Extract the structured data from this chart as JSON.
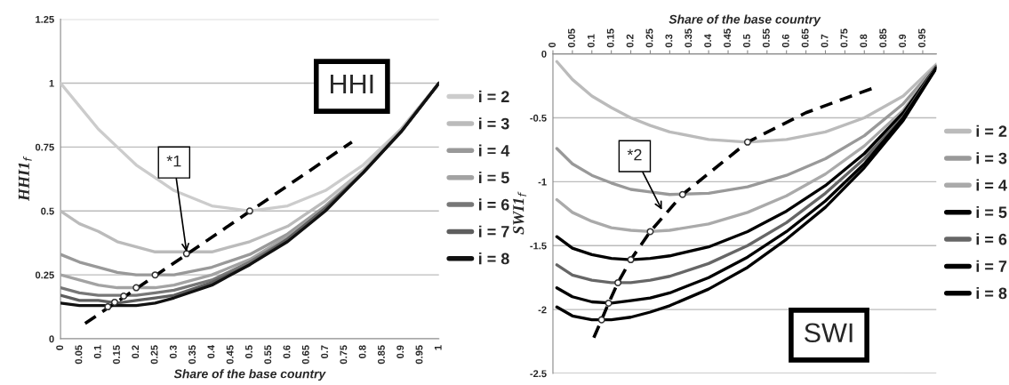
{
  "chart_data": [
    {
      "type": "line",
      "xlabel": "Share of the base country",
      "ylabel": "HHI1$_{f}$",
      "x": [
        0,
        0.05,
        0.1,
        0.15,
        0.2,
        0.25,
        0.3,
        0.4,
        0.5,
        0.6,
        0.7,
        0.8,
        0.9,
        1
      ],
      "xlim": [
        0,
        1
      ],
      "xticks": [
        0,
        0.05,
        0.1,
        0.15,
        0.2,
        0.25,
        0.3,
        0.35,
        0.4,
        0.45,
        0.5,
        0.55,
        0.6,
        0.65,
        0.7,
        0.75,
        0.8,
        0.85,
        0.9,
        0.95,
        1
      ],
      "ylim": [
        0,
        1.25
      ],
      "yticks": [
        0,
        0.25,
        0.5,
        0.75,
        1,
        1.25
      ],
      "grid": "y",
      "legend": "right",
      "annotations": [
        "HHI",
        {
          "text": "*1",
          "x": 0.333,
          "y": 0.34
        }
      ],
      "series": [
        {
          "name": "i = 2",
          "color": "#cccccc",
          "values": [
            1,
            0.91,
            0.82,
            0.75,
            0.68,
            0.63,
            0.58,
            0.52,
            0.5,
            0.52,
            0.58,
            0.68,
            0.82,
            1
          ]
        },
        {
          "name": "i = 3",
          "color": "#bbbbbb",
          "values": [
            0.5,
            0.45,
            0.42,
            0.38,
            0.36,
            0.34,
            0.34,
            0.34,
            0.38,
            0.44,
            0.54,
            0.66,
            0.82,
            1
          ]
        },
        {
          "name": "i = 4",
          "color": "#999999",
          "values": [
            0.33,
            0.3,
            0.28,
            0.26,
            0.25,
            0.25,
            0.25,
            0.28,
            0.33,
            0.41,
            0.52,
            0.65,
            0.81,
            1
          ]
        },
        {
          "name": "i = 5",
          "color": "#a3a3a3",
          "values": [
            0.25,
            0.23,
            0.21,
            0.2,
            0.2,
            0.2,
            0.21,
            0.25,
            0.31,
            0.4,
            0.51,
            0.65,
            0.81,
            1
          ]
        },
        {
          "name": "i = 6",
          "color": "#777777",
          "values": [
            0.2,
            0.18,
            0.17,
            0.17,
            0.17,
            0.18,
            0.19,
            0.23,
            0.3,
            0.39,
            0.51,
            0.65,
            0.81,
            1
          ]
        },
        {
          "name": "i = 7",
          "color": "#5e5e5e",
          "values": [
            0.17,
            0.15,
            0.15,
            0.14,
            0.15,
            0.16,
            0.17,
            0.22,
            0.29,
            0.39,
            0.51,
            0.65,
            0.81,
            1
          ]
        },
        {
          "name": "i = 8",
          "color": "#111111",
          "values": [
            0.14,
            0.13,
            0.13,
            0.13,
            0.13,
            0.14,
            0.16,
            0.21,
            0.29,
            0.38,
            0.5,
            0.65,
            0.81,
            1
          ]
        },
        {
          "type": "line",
          "line_style": "dashed",
          "color": "#000000",
          "x": [
            0.065,
            0.77
          ],
          "values": [
            0.06,
            0.77
          ]
        },
        {
          "type": "scatter",
          "marker": "circle",
          "color": "#333333",
          "x": [
            0.125,
            0.143,
            0.167,
            0.2,
            0.25,
            0.333,
            0.5
          ],
          "values": [
            0.125,
            0.143,
            0.167,
            0.2,
            0.25,
            0.333,
            0.5
          ]
        }
      ]
    },
    {
      "type": "line",
      "xlabel": "Share of the base country",
      "ylabel": "SWI1$_{f}$",
      "x": [
        0.01,
        0.05,
        0.1,
        0.15,
        0.2,
        0.25,
        0.3,
        0.4,
        0.5,
        0.6,
        0.7,
        0.8,
        0.9,
        0.985
      ],
      "xlim": [
        0,
        0.985
      ],
      "xticks": [
        0,
        0.05,
        0.1,
        0.15,
        0.2,
        0.25,
        0.3,
        0.35,
        0.4,
        0.45,
        0.5,
        0.55,
        0.6,
        0.65,
        0.7,
        0.75,
        0.8,
        0.85,
        0.9,
        0.95
      ],
      "ylim": [
        -2.5,
        0
      ],
      "yticks": [
        -2.5,
        -2,
        -1.5,
        -1,
        -0.5,
        0
      ],
      "grid": "y",
      "legend": "right",
      "annotations": [
        "SWI",
        {
          "text": "*2",
          "x": 0.28,
          "y": -1.22
        }
      ],
      "series": [
        {
          "name": "i = 2",
          "color": "#bbbbbb",
          "values": [
            -0.06,
            -0.2,
            -0.33,
            -0.42,
            -0.5,
            -0.56,
            -0.61,
            -0.67,
            -0.69,
            -0.67,
            -0.61,
            -0.5,
            -0.33,
            -0.08
          ]
        },
        {
          "name": "i = 3",
          "color": "#999999",
          "values": [
            -0.74,
            -0.86,
            -0.95,
            -1.01,
            -1.06,
            -1.08,
            -1.1,
            -1.09,
            -1.04,
            -0.95,
            -0.82,
            -0.64,
            -0.39,
            -0.09
          ]
        },
        {
          "name": "i = 4",
          "color": "#aaaaaa",
          "values": [
            -1.14,
            -1.24,
            -1.31,
            -1.36,
            -1.38,
            -1.39,
            -1.38,
            -1.33,
            -1.24,
            -1.11,
            -0.94,
            -0.72,
            -0.44,
            -0.09
          ]
        },
        {
          "name": "i = 5",
          "color": "#000000",
          "values": [
            -1.43,
            -1.52,
            -1.57,
            -1.6,
            -1.61,
            -1.6,
            -1.58,
            -1.51,
            -1.39,
            -1.23,
            -1.03,
            -0.78,
            -0.46,
            -0.1
          ]
        },
        {
          "name": "i = 6",
          "color": "#666666",
          "values": [
            -1.65,
            -1.73,
            -1.77,
            -1.79,
            -1.79,
            -1.77,
            -1.74,
            -1.64,
            -1.5,
            -1.32,
            -1.09,
            -0.82,
            -0.49,
            -0.1
          ]
        },
        {
          "name": "i = 7",
          "color": "#000000",
          "values": [
            -1.83,
            -1.9,
            -1.94,
            -1.95,
            -1.93,
            -1.91,
            -1.87,
            -1.75,
            -1.59,
            -1.39,
            -1.15,
            -0.86,
            -0.5,
            -0.11
          ]
        },
        {
          "name": "i = 8",
          "color": "#000000",
          "values": [
            -1.98,
            -2.05,
            -2.08,
            -2.08,
            -2.06,
            -2.02,
            -1.97,
            -1.84,
            -1.67,
            -1.45,
            -1.2,
            -0.89,
            -0.52,
            -0.11
          ]
        },
        {
          "type": "line",
          "line_style": "dashed",
          "color": "#000000",
          "x": [
            0.105,
            0.125,
            0.143,
            0.167,
            0.2,
            0.25,
            0.333,
            0.5,
            0.65,
            0.82
          ],
          "values": [
            -2.22,
            -2.08,
            -1.95,
            -1.79,
            -1.61,
            -1.39,
            -1.1,
            -0.69,
            -0.46,
            -0.27
          ]
        },
        {
          "type": "scatter",
          "marker": "circle",
          "color": "#333333",
          "x": [
            0.125,
            0.143,
            0.167,
            0.2,
            0.25,
            0.333,
            0.5
          ],
          "values": [
            -2.08,
            -1.95,
            -1.79,
            -1.61,
            -1.39,
            -1.1,
            -0.69
          ]
        }
      ]
    }
  ]
}
